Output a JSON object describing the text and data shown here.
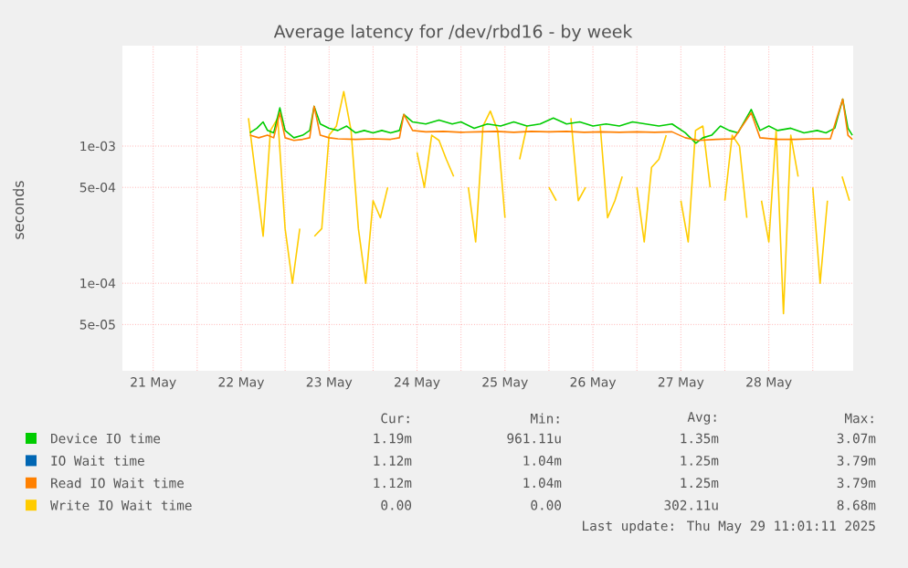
{
  "chart_data": {
    "type": "line",
    "title": "Average latency for /dev/rbd16 - by week",
    "ylabel": "seconds",
    "log": "y",
    "grid": true,
    "legend": "bottom",
    "xlim": [
      "2025-05-21T03:36",
      "2025-05-29T11:02"
    ],
    "ylim": [
      2.3e-05,
      0.0054
    ],
    "xticks": [
      {
        "value": "2025-05-21T12:00",
        "label": "21 May"
      },
      {
        "value": "2025-05-22T12:00",
        "label": "22 May"
      },
      {
        "value": "2025-05-23T12:00",
        "label": "23 May"
      },
      {
        "value": "2025-05-24T12:00",
        "label": "24 May"
      },
      {
        "value": "2025-05-25T12:00",
        "label": "25 May"
      },
      {
        "value": "2025-05-26T12:00",
        "label": "26 May"
      },
      {
        "value": "2025-05-27T12:00",
        "label": "27 May"
      },
      {
        "value": "2025-05-28T12:00",
        "label": "28 May"
      },
      {
        "value": "2025-05-22T00:00",
        "label": null
      },
      {
        "value": "2025-05-23T00:00",
        "label": null
      },
      {
        "value": "2025-05-24T00:00",
        "label": null
      },
      {
        "value": "2025-05-25T00:00",
        "label": null
      },
      {
        "value": "2025-05-26T00:00",
        "label": null
      },
      {
        "value": "2025-05-27T00:00",
        "label": null
      },
      {
        "value": "2025-05-28T00:00",
        "label": null
      },
      {
        "value": "2025-05-29T00:00",
        "label": null
      }
    ],
    "yticks": [
      {
        "value": 5e-05,
        "label": "5e-05"
      },
      {
        "value": 0.0001,
        "label": "1e-04"
      },
      {
        "value": 0.0005,
        "label": "5e-04"
      },
      {
        "value": 0.001,
        "label": "1e-03"
      }
    ],
    "series": [
      {
        "name": "Device IO time",
        "color": "#00cc00",
        "x": [
          "2025-05-22T14:24",
          "2025-05-22T16:19",
          "2025-05-22T18:00",
          "2025-05-22T19:12",
          "2025-05-22T20:53",
          "2025-05-22T22:34",
          "2025-05-23T00:00",
          "2025-05-23T02:24",
          "2025-05-23T04:48",
          "2025-05-23T06:43",
          "2025-05-23T07:55",
          "2025-05-23T09:36",
          "2025-05-23T12:00",
          "2025-05-23T14:24",
          "2025-05-23T16:48",
          "2025-05-23T19:12",
          "2025-05-23T21:36",
          "2025-05-24T00:00",
          "2025-05-24T02:24",
          "2025-05-24T04:48",
          "2025-05-24T07:12",
          "2025-05-24T08:24",
          "2025-05-24T10:48",
          "2025-05-24T14:24",
          "2025-05-24T18:00",
          "2025-05-24T21:36",
          "2025-05-25T00:00",
          "2025-05-25T03:36",
          "2025-05-25T07:12",
          "2025-05-25T10:48",
          "2025-05-25T14:24",
          "2025-05-25T18:00",
          "2025-05-25T21:36",
          "2025-05-26T01:12",
          "2025-05-26T04:48",
          "2025-05-26T08:24",
          "2025-05-26T12:00",
          "2025-05-26T15:36",
          "2025-05-26T19:12",
          "2025-05-26T22:48",
          "2025-05-27T02:24",
          "2025-05-27T06:00",
          "2025-05-27T09:36",
          "2025-05-27T13:12",
          "2025-05-27T16:05",
          "2025-05-27T18:00",
          "2025-05-27T20:24",
          "2025-05-27T22:48",
          "2025-05-28T01:12",
          "2025-05-28T03:36",
          "2025-05-28T07:12",
          "2025-05-28T09:36",
          "2025-05-28T12:00",
          "2025-05-28T14:24",
          "2025-05-28T18:00",
          "2025-05-28T21:36",
          "2025-05-29T01:12",
          "2025-05-29T03:36",
          "2025-05-29T06:00",
          "2025-05-29T08:10",
          "2025-05-29T09:36",
          "2025-05-29T10:48"
        ],
        "values": [
          0.00125,
          0.00135,
          0.0015,
          0.0013,
          0.00125,
          0.0019,
          0.0013,
          0.00115,
          0.0012,
          0.0013,
          0.00195,
          0.00145,
          0.00135,
          0.0013,
          0.0014,
          0.00125,
          0.0013,
          0.00125,
          0.0013,
          0.00125,
          0.0013,
          0.0017,
          0.0015,
          0.00145,
          0.00155,
          0.00145,
          0.0015,
          0.00135,
          0.00145,
          0.0014,
          0.0015,
          0.0014,
          0.00145,
          0.0016,
          0.00145,
          0.0015,
          0.0014,
          0.00145,
          0.0014,
          0.0015,
          0.00145,
          0.0014,
          0.00145,
          0.00125,
          0.00105,
          0.00115,
          0.0012,
          0.0014,
          0.0013,
          0.00125,
          0.00185,
          0.0013,
          0.0014,
          0.0013,
          0.00135,
          0.00125,
          0.0013,
          0.00125,
          0.00135,
          0.0022,
          0.00135,
          0.0012
        ]
      },
      {
        "name": "IO Wait time",
        "color": "#0066b3"
      },
      {
        "name": "Read IO Wait time",
        "color": "#ff8000",
        "x": [
          "2025-05-22T14:24",
          "2025-05-22T16:48",
          "2025-05-22T19:12",
          "2025-05-22T20:53",
          "2025-05-22T22:34",
          "2025-05-23T00:00",
          "2025-05-23T02:24",
          "2025-05-23T04:48",
          "2025-05-23T06:43",
          "2025-05-23T07:55",
          "2025-05-23T09:36",
          "2025-05-23T12:00",
          "2025-05-23T14:24",
          "2025-05-23T19:12",
          "2025-05-24T00:00",
          "2025-05-24T04:48",
          "2025-05-24T07:12",
          "2025-05-24T08:24",
          "2025-05-24T10:48",
          "2025-05-24T14:24",
          "2025-05-24T19:12",
          "2025-05-25T00:00",
          "2025-05-25T04:48",
          "2025-05-25T09:36",
          "2025-05-25T14:24",
          "2025-05-25T19:12",
          "2025-05-26T00:00",
          "2025-05-26T04:48",
          "2025-05-26T09:36",
          "2025-05-26T14:24",
          "2025-05-26T19:12",
          "2025-05-27T00:00",
          "2025-05-27T04:48",
          "2025-05-27T09:36",
          "2025-05-27T13:12",
          "2025-05-27T16:48",
          "2025-05-27T21:36",
          "2025-05-28T02:24",
          "2025-05-28T07:12",
          "2025-05-28T09:36",
          "2025-05-28T14:24",
          "2025-05-28T19:12",
          "2025-05-29T00:00",
          "2025-05-29T04:48",
          "2025-05-29T08:10",
          "2025-05-29T09:36",
          "2025-05-29T10:48"
        ],
        "values": [
          0.0012,
          0.00115,
          0.0012,
          0.00115,
          0.00175,
          0.00115,
          0.0011,
          0.00112,
          0.00115,
          0.00195,
          0.0012,
          0.00115,
          0.00113,
          0.00112,
          0.00113,
          0.00112,
          0.00115,
          0.0017,
          0.0013,
          0.00127,
          0.00128,
          0.00126,
          0.00127,
          0.00128,
          0.00126,
          0.00128,
          0.00127,
          0.00128,
          0.00126,
          0.00127,
          0.00126,
          0.00127,
          0.00126,
          0.00127,
          0.00115,
          0.0011,
          0.00112,
          0.00113,
          0.00175,
          0.00115,
          0.00112,
          0.00112,
          0.00113,
          0.00113,
          0.0022,
          0.0012,
          0.00112
        ]
      },
      {
        "name": "Write IO Wait time",
        "color": "#ffcc00",
        "x": [
          "2025-05-22T14:00",
          "2025-05-22T16:00",
          "2025-05-22T18:00",
          "2025-05-22T20:00",
          "2025-05-22T22:00",
          "2025-05-23T00:00",
          "2025-05-23T02:00",
          "2025-05-23T04:00",
          "2025-05-23T06:00",
          "2025-05-23T08:00",
          "2025-05-23T10:00",
          "2025-05-23T12:00",
          "2025-05-23T14:00",
          "2025-05-23T16:00",
          "2025-05-23T18:00",
          "2025-05-23T20:00",
          "2025-05-23T22:00",
          "2025-05-24T00:00",
          "2025-05-24T02:00",
          "2025-05-24T04:00",
          "2025-05-24T06:00",
          "2025-05-24T08:00",
          "2025-05-24T10:00",
          "2025-05-24T12:00",
          "2025-05-24T14:00",
          "2025-05-24T16:00",
          "2025-05-24T18:00",
          "2025-05-24T20:00",
          "2025-05-24T22:00",
          "2025-05-25T00:00",
          "2025-05-25T02:00",
          "2025-05-25T04:00",
          "2025-05-25T06:00",
          "2025-05-25T08:00",
          "2025-05-25T10:00",
          "2025-05-25T12:00",
          "2025-05-25T14:00",
          "2025-05-25T16:00",
          "2025-05-25T18:00",
          "2025-05-25T20:00",
          "2025-05-25T22:00",
          "2025-05-26T00:00",
          "2025-05-26T02:00",
          "2025-05-26T04:00",
          "2025-05-26T06:00",
          "2025-05-26T08:00",
          "2025-05-26T10:00",
          "2025-05-26T12:00",
          "2025-05-26T14:00",
          "2025-05-26T16:00",
          "2025-05-26T18:00",
          "2025-05-26T20:00",
          "2025-05-26T22:00",
          "2025-05-27T00:00",
          "2025-05-27T02:00",
          "2025-05-27T04:00",
          "2025-05-27T06:00",
          "2025-05-27T08:00",
          "2025-05-27T10:00",
          "2025-05-27T12:00",
          "2025-05-27T14:00",
          "2025-05-27T16:00",
          "2025-05-27T18:00",
          "2025-05-27T20:00",
          "2025-05-27T22:00",
          "2025-05-28T00:00",
          "2025-05-28T02:00",
          "2025-05-28T04:00",
          "2025-05-28T06:00",
          "2025-05-28T08:00",
          "2025-05-28T10:00",
          "2025-05-28T12:00",
          "2025-05-28T14:00",
          "2025-05-28T16:00",
          "2025-05-28T18:00",
          "2025-05-28T20:00",
          "2025-05-28T22:00",
          "2025-05-29T00:00",
          "2025-05-29T02:00",
          "2025-05-29T04:00",
          "2025-05-29T06:00",
          "2025-05-29T08:00",
          "2025-05-29T10:00"
        ],
        "values": [
          0.0016,
          0.0006,
          0.00022,
          0.0013,
          0.0016,
          0.00025,
          0.0001,
          0.00025,
          null,
          0.00022,
          0.00025,
          0.0012,
          0.0014,
          0.0025,
          0.0013,
          0.00025,
          0.0001,
          0.0004,
          0.0003,
          0.0005,
          null,
          null,
          null,
          0.0009,
          0.0005,
          0.0012,
          0.0011,
          0.0008,
          0.0006,
          null,
          0.0005,
          0.0002,
          0.0014,
          0.0018,
          0.0013,
          0.0003,
          null,
          0.0008,
          0.0014,
          null,
          null,
          0.0005,
          0.0004,
          null,
          0.0016,
          0.0004,
          0.0005,
          null,
          0.0014,
          0.0003,
          0.0004,
          0.0006,
          null,
          0.0005,
          0.0002,
          0.0007,
          0.0008,
          0.0012,
          null,
          0.0004,
          0.0002,
          0.0013,
          0.0014,
          0.0005,
          null,
          0.0004,
          0.0012,
          0.001,
          0.0003,
          null,
          0.0004,
          0.0002,
          0.0013,
          6e-05,
          0.0012,
          0.0006,
          null,
          0.0005,
          0.0001,
          0.0004,
          null,
          0.0006,
          0.0004
        ]
      }
    ],
    "annotations": [
      "Cur:",
      "Min:",
      "Avg:",
      "Max:",
      "1.19m",
      "961.11u",
      "1.35m",
      "3.07m",
      "1.12m",
      "1.04m",
      "1.25m",
      "3.79m",
      "1.12m",
      "1.04m",
      "1.25m",
      "3.79m",
      "0.00",
      "0.00",
      "302.11u",
      "8.68m",
      "Last update: Thu May 29 11:01:11 2025"
    ]
  }
}
